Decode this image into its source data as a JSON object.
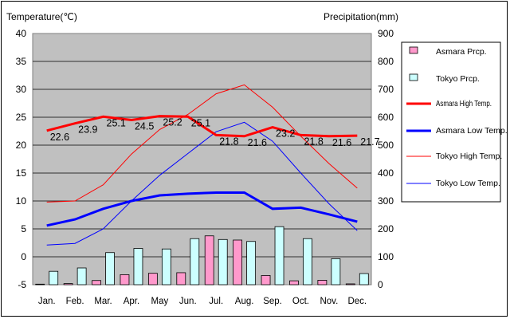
{
  "chart_data": {
    "type": "bar+line",
    "title_left": "Temperature(℃)",
    "title_right": "Precipitation(mm)",
    "categories": [
      "Jan.",
      "Feb.",
      "Mar.",
      "Apr.",
      "May",
      "Jun.",
      "Jul.",
      "Aug.",
      "Sep.",
      "Oct.",
      "Nov.",
      "Dec."
    ],
    "y_left": {
      "min": -5,
      "max": 40,
      "ticks": [
        40,
        35,
        30,
        25,
        20,
        15,
        10,
        5,
        0,
        -5
      ]
    },
    "y_right": {
      "min": 0,
      "max": 900,
      "ticks": [
        900,
        800,
        700,
        600,
        500,
        400,
        300,
        200,
        100,
        0
      ]
    },
    "grid": true,
    "series": [
      {
        "name": "Asmara Prcp.",
        "type": "bar",
        "axis": "right",
        "color": "#ff99cc",
        "values": [
          2,
          4,
          15,
          36,
          41,
          43,
          175,
          160,
          33,
          14,
          16,
          3
        ]
      },
      {
        "name": "Tokyo Prcp.",
        "type": "bar",
        "axis": "right",
        "color": "#ccffff",
        "values": [
          48,
          60,
          115,
          130,
          128,
          165,
          162,
          155,
          208,
          165,
          93,
          40
        ]
      },
      {
        "name": "Asmara High Temp.",
        "type": "line",
        "axis": "left",
        "color": "#ff0000",
        "width": 3,
        "values": [
          22.6,
          23.9,
          25.1,
          24.5,
          25.2,
          25.1,
          21.8,
          21.6,
          23.2,
          21.8,
          21.6,
          21.7
        ]
      },
      {
        "name": "Asmara Low Temp.",
        "type": "line",
        "axis": "left",
        "color": "#0000ff",
        "width": 3,
        "values": [
          5.6,
          6.7,
          8.6,
          10.0,
          11.0,
          11.3,
          11.5,
          11.5,
          8.6,
          8.8,
          7.6,
          6.3
        ]
      },
      {
        "name": "Tokyo High Temp.",
        "type": "line",
        "axis": "left",
        "color": "#ff0000",
        "width": 1,
        "values": [
          9.8,
          10.0,
          12.9,
          18.4,
          22.8,
          25.5,
          29.2,
          30.8,
          26.8,
          21.6,
          16.7,
          12.3
        ]
      },
      {
        "name": "Tokyo Low Temp.",
        "type": "line",
        "axis": "left",
        "color": "#0000ff",
        "width": 1,
        "values": [
          2.1,
          2.4,
          5.0,
          10.0,
          14.6,
          18.5,
          22.4,
          24.1,
          20.7,
          15.0,
          9.5,
          4.7
        ]
      }
    ],
    "data_labels": {
      "series": "Asmara High Temp.",
      "labels": [
        "22.6",
        "23.9",
        "25.1",
        "24.5",
        "25.2",
        "25.1",
        "21.8",
        "21.6",
        "23.2",
        "21.8",
        "21.6",
        "21.7"
      ]
    },
    "legend": [
      "Asmara Prcp.",
      "Tokyo Prcp.",
      "Asmara High Temp.",
      "Asmara Low Temp.",
      "Tokyo High Temp.",
      "Tokyo Low Temp."
    ]
  }
}
